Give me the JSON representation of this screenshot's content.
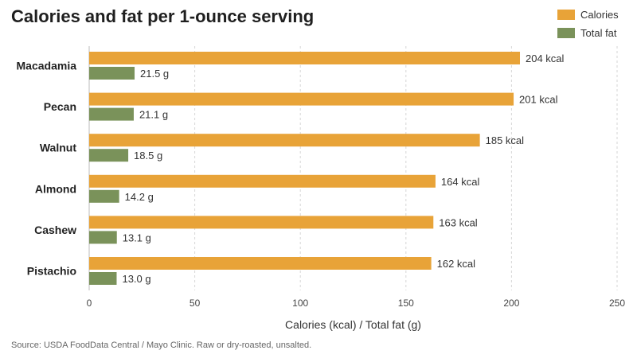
{
  "chart_data": {
    "type": "bar",
    "orientation": "horizontal",
    "title": "Calories and fat per 1-ounce serving",
    "categories": [
      "Macadamia",
      "Pecan",
      "Walnut",
      "Almond",
      "Cashew",
      "Pistachio"
    ],
    "series": [
      {
        "name": "Calories",
        "color": "#E8A338",
        "values": [
          204,
          201,
          185,
          164,
          163,
          162
        ],
        "labels": [
          "204 kcal",
          "201 kcal",
          "185 kcal",
          "164 kcal",
          "163 kcal",
          "162 kcal"
        ]
      },
      {
        "name": "Total fat",
        "color": "#7A925A",
        "values": [
          21.5,
          21.1,
          18.5,
          14.2,
          13.1,
          13.0
        ],
        "labels": [
          "21.5 g",
          "21.1 g",
          "18.5 g",
          "14.2 g",
          "13.1 g",
          "13.0 g"
        ]
      }
    ],
    "xlabel": "Calories (kcal) / Total fat (g)",
    "xlim": [
      0,
      250
    ],
    "xticks": [
      0,
      50,
      100,
      150,
      200,
      250
    ],
    "grid": "vertical-dashed",
    "legend": "top-right"
  },
  "source": "Source: USDA FoodData Central / Mayo Clinic. Raw or dry-roasted, unsalted."
}
